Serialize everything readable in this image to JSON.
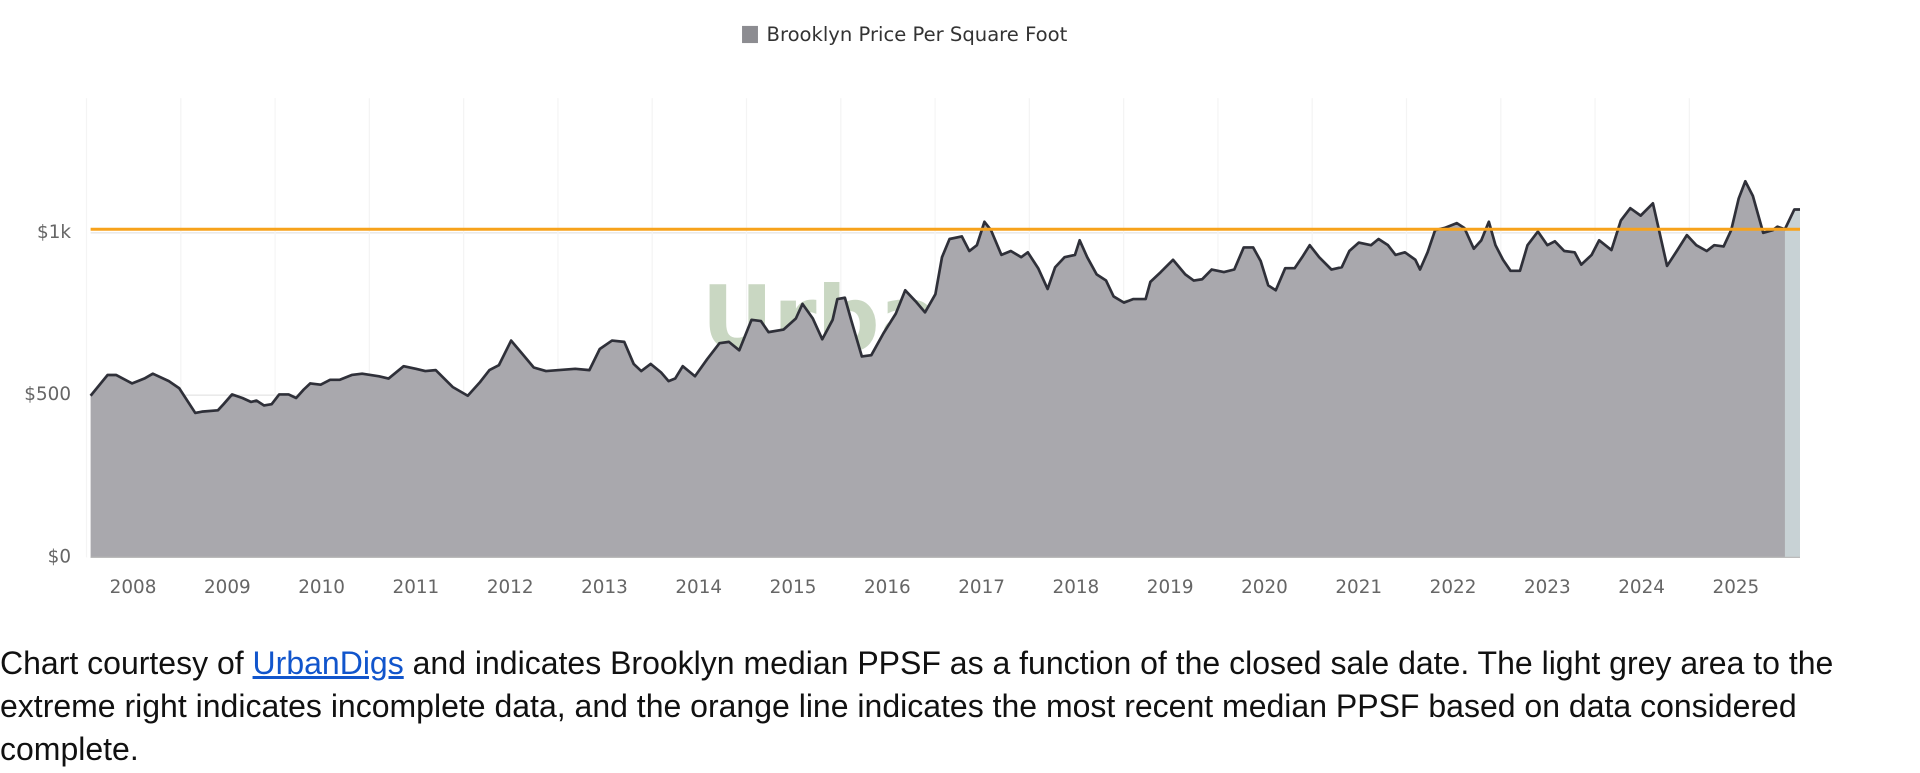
{
  "chart_data": {
    "type": "area",
    "legend": "Brooklyn Price Per Square Foot",
    "watermark": "UrbanDigs",
    "series": [
      {
        "name": "Brooklyn Price Per Square Foot",
        "color": "#a9a8ad",
        "line_color": "#2f3039",
        "x": [
          2007.55,
          2007.73,
          2007.82,
          2007.99,
          2008.12,
          2008.21,
          2008.38,
          2008.49,
          2008.66,
          2008.73,
          2008.9,
          2008.96,
          2009.05,
          2009.16,
          2009.25,
          2009.31,
          2009.39,
          2009.47,
          2009.55,
          2009.65,
          2009.73,
          2009.81,
          2009.88,
          2009.99,
          2010.09,
          2010.19,
          2010.32,
          2010.43,
          2010.61,
          2010.71,
          2010.87,
          2011.0,
          2011.1,
          2011.21,
          2011.39,
          2011.55,
          2011.68,
          2011.78,
          2011.88,
          2012.01,
          2012.12,
          2012.25,
          2012.38,
          2012.69,
          2012.84,
          2012.95,
          2013.08,
          2013.21,
          2013.31,
          2013.39,
          2013.49,
          2013.6,
          2013.68,
          2013.75,
          2013.83,
          2013.96,
          2014.09,
          2014.22,
          2014.32,
          2014.43,
          2014.56,
          2014.66,
          2014.74,
          2014.9,
          2015.03,
          2015.1,
          2015.21,
          2015.31,
          2015.42,
          2015.47,
          2015.55,
          2015.62,
          2015.73,
          2015.83,
          2015.96,
          2016.09,
          2016.19,
          2016.3,
          2016.4,
          2016.51,
          2016.58,
          2016.66,
          2016.79,
          2016.87,
          2016.95,
          2017.03,
          2017.1,
          2017.21,
          2017.31,
          2017.42,
          2017.49,
          2017.6,
          2017.7,
          2017.78,
          2017.88,
          2017.99,
          2018.04,
          2018.12,
          2018.22,
          2018.32,
          2018.4,
          2018.51,
          2018.61,
          2018.74,
          2018.79,
          2018.9,
          2019.03,
          2019.16,
          2019.25,
          2019.34,
          2019.44,
          2019.57,
          2019.68,
          2019.78,
          2019.88,
          2019.96,
          2020.04,
          2020.12,
          2020.22,
          2020.32,
          2020.4,
          2020.48,
          2020.58,
          2020.71,
          2020.82,
          2020.9,
          2021.0,
          2021.13,
          2021.21,
          2021.31,
          2021.39,
          2021.49,
          2021.6,
          2021.65,
          2021.73,
          2021.81,
          2021.91,
          2022.04,
          2022.12,
          2022.22,
          2022.3,
          2022.38,
          2022.45,
          2022.53,
          2022.61,
          2022.71,
          2022.79,
          2022.9,
          2023.0,
          2023.08,
          2023.18,
          2023.29,
          2023.36,
          2023.47,
          2023.55,
          2023.68,
          2023.78,
          2023.88,
          2023.99,
          2024.12,
          2024.17,
          2024.27,
          2024.38,
          2024.48,
          2024.58,
          2024.69,
          2024.77,
          2024.87,
          2024.95,
          2025.03,
          2025.1,
          2025.18,
          2025.29,
          2025.39,
          2025.44,
          2025.52,
          2025.62,
          2025.68
        ],
        "values": [
          498,
          562,
          562,
          536,
          551,
          566,
          543,
          521,
          445,
          449,
          453,
          472,
          502,
          491,
          479,
          483,
          468,
          472,
          502,
          502,
          491,
          517,
          536,
          532,
          547,
          547,
          562,
          566,
          558,
          551,
          589,
          581,
          574,
          577,
          525,
          498,
          540,
          577,
          592,
          668,
          630,
          585,
          574,
          581,
          577,
          642,
          668,
          664,
          596,
          574,
          596,
          570,
          543,
          551,
          589,
          558,
          611,
          660,
          664,
          638,
          732,
          728,
          694,
          702,
          736,
          781,
          736,
          672,
          732,
          796,
          800,
          728,
          619,
          623,
          691,
          751,
          823,
          789,
          755,
          811,
          925,
          981,
          989,
          944,
          962,
          1034,
          1008,
          932,
          944,
          925,
          940,
          891,
          827,
          894,
          925,
          932,
          977,
          925,
          872,
          853,
          804,
          785,
          796,
          796,
          849,
          879,
          917,
          872,
          853,
          857,
          887,
          879,
          887,
          955,
          955,
          913,
          838,
          823,
          891,
          891,
          925,
          962,
          925,
          887,
          894,
          944,
          970,
          962,
          981,
          962,
          932,
          940,
          917,
          887,
          940,
          1008,
          1015,
          1030,
          1015,
          951,
          977,
          1034,
          962,
          917,
          883,
          883,
          962,
          1004,
          962,
          974,
          944,
          940,
          902,
          932,
          977,
          947,
          1038,
          1076,
          1053,
          1091,
          1027,
          898,
          947,
          993,
          962,
          944,
          962,
          958,
          1008,
          1106,
          1159,
          1114,
          1000,
          1008,
          1019,
          1011,
          1072,
          1072
        ]
      }
    ],
    "reference_line": {
      "value": 1011,
      "color": "#f7a21b"
    },
    "shaded_region": {
      "xlim": [
        2025.52,
        2025.68
      ],
      "color": "#c8d2d5"
    },
    "xlim": [
      2007.55,
      2025.68
    ],
    "xticks": [
      2008,
      2009,
      2010,
      2011,
      2012,
      2013,
      2014,
      2015,
      2016,
      2017,
      2018,
      2019,
      2020,
      2021,
      2022,
      2023,
      2024,
      2025
    ],
    "ylim": [
      0,
      1415
    ],
    "yticks": [
      {
        "value": 0,
        "label": "$0"
      },
      {
        "value": 500,
        "label": "$500"
      },
      {
        "value": 1000,
        "label": "$1k"
      }
    ],
    "grid": true
  },
  "caption": {
    "before": "Chart courtesy of ",
    "link": "UrbanDigs",
    "after": " and indicates Brooklyn median PPSF as a function of the closed sale date.  The light grey area to the extreme right indicates incomplete data, and the orange line indicates the most recent median PPSF based on data considered complete."
  }
}
